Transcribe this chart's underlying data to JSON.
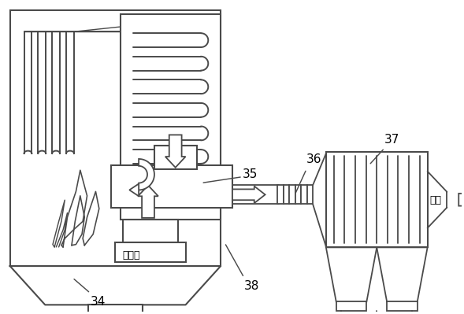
{
  "bg_color": "#ffffff",
  "line_color": "#4a4a4a",
  "lw": 1.3,
  "fig_width": 5.89,
  "fig_height": 3.99,
  "dpi": 100
}
